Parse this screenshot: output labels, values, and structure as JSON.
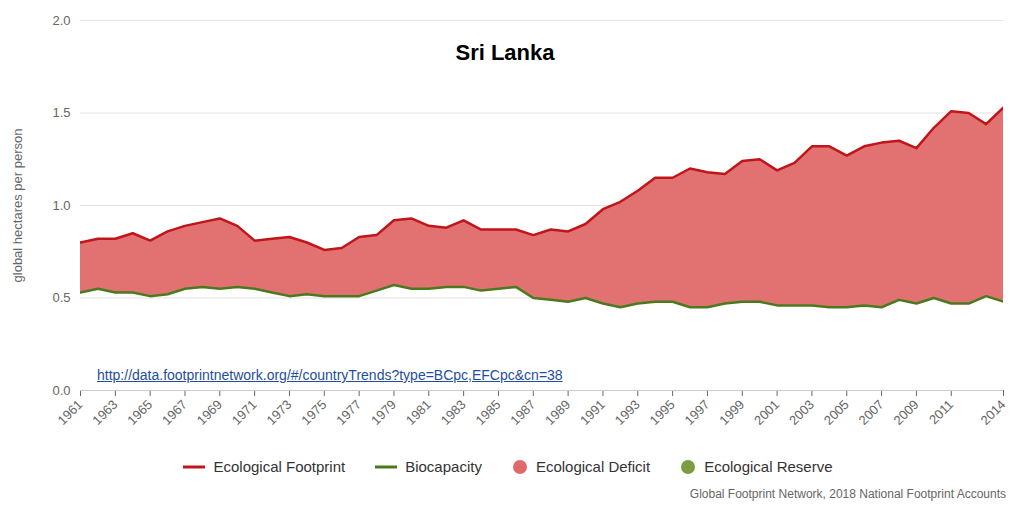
{
  "chart_data": {
    "type": "area",
    "title": "Sri Lanka",
    "ylabel": "global hectares per person",
    "link": "http://data.footprintnetwork.org/#/countryTrends?type=BCpc,EFCpc&cn=38",
    "caption": "Global Footprint Network, 2018 National Footprint Accounts",
    "x": [
      1961,
      1962,
      1963,
      1964,
      1965,
      1966,
      1967,
      1968,
      1969,
      1970,
      1971,
      1972,
      1973,
      1974,
      1975,
      1976,
      1977,
      1978,
      1979,
      1980,
      1981,
      1982,
      1983,
      1984,
      1985,
      1986,
      1987,
      1988,
      1989,
      1990,
      1991,
      1992,
      1993,
      1994,
      1995,
      1996,
      1997,
      1998,
      1999,
      2000,
      2001,
      2002,
      2003,
      2004,
      2005,
      2006,
      2007,
      2008,
      2009,
      2010,
      2011,
      2012,
      2013,
      2014
    ],
    "series": [
      {
        "name": "Ecological Footprint",
        "color": "#c0161b",
        "type": "line",
        "values": [
          0.8,
          0.82,
          0.82,
          0.85,
          0.81,
          0.86,
          0.89,
          0.91,
          0.93,
          0.89,
          0.81,
          0.82,
          0.83,
          0.8,
          0.76,
          0.77,
          0.83,
          0.84,
          0.92,
          0.93,
          0.89,
          0.88,
          0.92,
          0.87,
          0.87,
          0.87,
          0.84,
          0.87,
          0.86,
          0.9,
          0.98,
          1.02,
          1.08,
          1.15,
          1.15,
          1.2,
          1.18,
          1.17,
          1.24,
          1.25,
          1.19,
          1.23,
          1.32,
          1.32,
          1.27,
          1.32,
          1.34,
          1.35,
          1.31,
          1.42,
          1.51,
          1.5,
          1.44,
          1.53
        ]
      },
      {
        "name": "Biocapacity",
        "color": "#4b7a1e",
        "type": "line",
        "values": [
          0.53,
          0.55,
          0.53,
          0.53,
          0.51,
          0.52,
          0.55,
          0.56,
          0.55,
          0.56,
          0.55,
          0.53,
          0.51,
          0.52,
          0.51,
          0.51,
          0.51,
          0.54,
          0.57,
          0.55,
          0.55,
          0.56,
          0.56,
          0.54,
          0.55,
          0.56,
          0.5,
          0.49,
          0.48,
          0.5,
          0.47,
          0.45,
          0.47,
          0.48,
          0.48,
          0.45,
          0.45,
          0.47,
          0.48,
          0.48,
          0.46,
          0.46,
          0.46,
          0.45,
          0.45,
          0.46,
          0.45,
          0.49,
          0.47,
          0.5,
          0.47,
          0.47,
          0.51,
          0.48
        ]
      }
    ],
    "areas": [
      {
        "name": "Ecological Deficit",
        "color": "#e06a6a",
        "marker": "circle"
      },
      {
        "name": "Ecological Reserve",
        "color": "#7a9e3f",
        "marker": "circle"
      }
    ],
    "xlim": [
      1961,
      2014
    ],
    "xticks": [
      1961,
      1963,
      1965,
      1967,
      1969,
      1971,
      1973,
      1975,
      1977,
      1979,
      1981,
      1983,
      1985,
      1987,
      1989,
      1991,
      1993,
      1995,
      1997,
      1999,
      2001,
      2003,
      2005,
      2007,
      2009,
      2011,
      2014
    ],
    "ylim": [
      0,
      2
    ],
    "yticks": [
      0,
      0.5,
      1,
      1.5,
      2
    ],
    "grid": true,
    "legend": "bottom"
  }
}
